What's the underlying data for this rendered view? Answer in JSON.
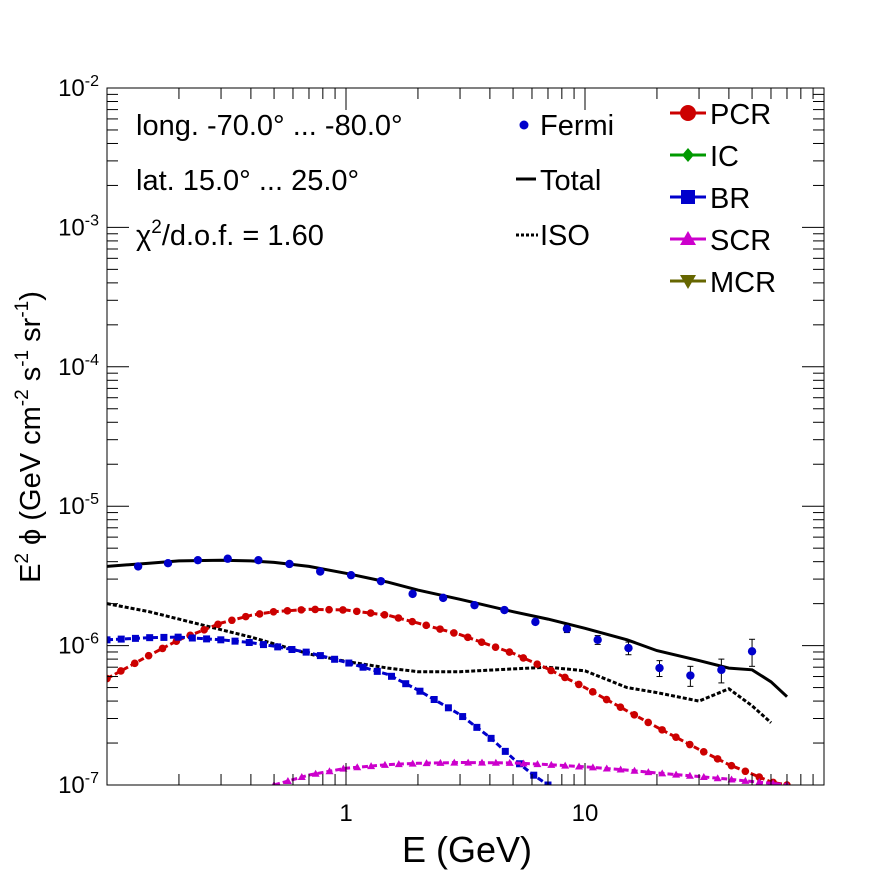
{
  "chart_data": {
    "type": "line",
    "title": "",
    "xlabel": "E (GeV)",
    "ylabel": {
      "prefix": "E",
      "prefix_sup": "2",
      "symbol": "ϕ (GeV cm",
      "sup1": "-2",
      "mid1": " s",
      "sup2": "-1",
      "mid2": " sr",
      "sup3": "-1",
      "suffix": ")"
    },
    "x_scale": "log",
    "y_scale": "log",
    "xlim": [
      0.1,
      100
    ],
    "ylim": [
      1e-07,
      0.01
    ],
    "x_tick_labels": [
      {
        "value": 1,
        "label": "1"
      },
      {
        "value": 10,
        "label": "10"
      }
    ],
    "y_tick_labels": [
      {
        "value": 1e-07,
        "base": "10",
        "exp": "-7"
      },
      {
        "value": 1e-06,
        "base": "10",
        "exp": "-6"
      },
      {
        "value": 1e-05,
        "base": "10",
        "exp": "-5"
      },
      {
        "value": 0.0001,
        "base": "10",
        "exp": "-4"
      },
      {
        "value": 0.001,
        "base": "10",
        "exp": "-3"
      },
      {
        "value": 0.01,
        "base": "10",
        "exp": "-2"
      }
    ],
    "annotations": {
      "region_longitude": "long. -70.0° ... -80.0°",
      "region_latitude": "lat. 15.0° ... 25.0°",
      "chi2": {
        "symbol": "χ",
        "sup": "2",
        "text": "/d.o.f. = 1.60"
      }
    },
    "legend_left": [
      {
        "label": "Fermi",
        "style": "dot"
      },
      {
        "label": "Total",
        "style": "solid"
      },
      {
        "label": "ISO",
        "style": "dotted"
      }
    ],
    "legend_right": [
      {
        "label": "PCR",
        "color": "#cc0000",
        "marker": "circle"
      },
      {
        "label": "IC",
        "color": "#009900",
        "marker": "diamond"
      },
      {
        "label": "BR",
        "color": "#0000cc",
        "marker": "square"
      },
      {
        "label": "SCR",
        "color": "#cc00cc",
        "marker": "triangle-up"
      },
      {
        "label": "MCR",
        "color": "#666600",
        "marker": "triangle-down"
      }
    ],
    "fermi": {
      "name": "Fermi",
      "color": "#0000cc",
      "points": [
        {
          "x": 0.135,
          "y": 3.7e-06,
          "err": 0
        },
        {
          "x": 0.18,
          "y": 3.9e-06,
          "err": 0
        },
        {
          "x": 0.24,
          "y": 4.1e-06,
          "err": 0
        },
        {
          "x": 0.32,
          "y": 4.2e-06,
          "err": 0
        },
        {
          "x": 0.43,
          "y": 4.1e-06,
          "err": 0
        },
        {
          "x": 0.58,
          "y": 3.85e-06,
          "err": 0
        },
        {
          "x": 0.78,
          "y": 3.4e-06,
          "err": 0
        },
        {
          "x": 1.05,
          "y": 3.2e-06,
          "err": 0
        },
        {
          "x": 1.4,
          "y": 2.9e-06,
          "err": 0
        },
        {
          "x": 1.9,
          "y": 2.35e-06,
          "err": 0
        },
        {
          "x": 2.55,
          "y": 2.2e-06,
          "err": 0
        },
        {
          "x": 3.45,
          "y": 1.95e-06,
          "err": 0
        },
        {
          "x": 4.6,
          "y": 1.8e-06,
          "err": 0
        },
        {
          "x": 6.2,
          "y": 1.48e-06,
          "err": 0
        },
        {
          "x": 8.4,
          "y": 1.32e-06,
          "err": 8e-08
        },
        {
          "x": 11.3,
          "y": 1.1e-06,
          "err": 8e-08
        },
        {
          "x": 15.2,
          "y": 9.6e-07,
          "err": 1e-07
        },
        {
          "x": 20.5,
          "y": 6.9e-07,
          "err": 9e-08
        },
        {
          "x": 27.6,
          "y": 6.1e-07,
          "err": 1e-07
        },
        {
          "x": 37.2,
          "y": 6.7e-07,
          "err": 1.3e-07
        },
        {
          "x": 50.0,
          "y": 9.1e-07,
          "err": 2e-07
        }
      ]
    },
    "series": [
      {
        "name": "Total",
        "color": "#000000",
        "style": "solid",
        "marker": "none",
        "x": [
          0.1,
          0.15,
          0.2,
          0.3,
          0.4,
          0.5,
          0.7,
          1.0,
          1.5,
          2.0,
          3.0,
          5.0,
          7.0,
          10.0,
          15.0,
          20.0,
          30.0,
          40.0,
          50.0,
          60.0,
          70.0
        ],
        "y": [
          3.7e-06,
          3.9e-06,
          4.05e-06,
          4.1e-06,
          4.05e-06,
          3.95e-06,
          3.7e-06,
          3.3e-06,
          2.85e-06,
          2.5e-06,
          2.15e-06,
          1.75e-06,
          1.55e-06,
          1.33e-06,
          1.1e-06,
          9.2e-07,
          7.8e-07,
          6.9e-07,
          6.7e-07,
          5.5e-07,
          4.3e-07
        ]
      },
      {
        "name": "ISO",
        "color": "#000000",
        "style": "dotted",
        "marker": "none",
        "x": [
          0.1,
          0.15,
          0.2,
          0.3,
          0.4,
          0.5,
          0.7,
          1.0,
          1.5,
          2.0,
          3.0,
          5.0,
          7.0,
          10.0,
          15.0,
          20.0,
          30.0,
          40.0,
          50.0,
          60.0
        ],
        "y": [
          2e-06,
          1.75e-06,
          1.55e-06,
          1.3e-06,
          1.15e-06,
          1.03e-06,
          8.7e-07,
          7.7e-07,
          6.9e-07,
          6.5e-07,
          6.5e-07,
          6.8e-07,
          7e-07,
          6.6e-07,
          5e-07,
          4.6e-07,
          4e-07,
          4.9e-07,
          3.7e-07,
          2.8e-07
        ]
      },
      {
        "name": "PCR",
        "color": "#cc0000",
        "style": "dashed",
        "marker": "circle",
        "x": [
          0.1,
          0.15,
          0.2,
          0.3,
          0.4,
          0.5,
          0.7,
          1.0,
          1.5,
          2.0,
          3.0,
          5.0,
          7.0,
          10.0,
          15.0,
          20.0,
          30.0,
          40.0,
          50.0,
          60.0,
          70.0
        ],
        "y": [
          5.8e-07,
          8.5e-07,
          1.1e-06,
          1.45e-06,
          1.65e-06,
          1.75e-06,
          1.82e-06,
          1.8e-06,
          1.65e-06,
          1.45e-06,
          1.2e-06,
          8.8e-07,
          6.8e-07,
          5e-07,
          3.4e-07,
          2.6e-07,
          1.8e-07,
          1.4e-07,
          1.2e-07,
          1.05e-07,
          1e-07
        ]
      },
      {
        "name": "BR",
        "color": "#0000cc",
        "style": "dashed",
        "marker": "square",
        "x": [
          0.1,
          0.15,
          0.2,
          0.3,
          0.4,
          0.5,
          0.7,
          1.0,
          1.5,
          2.0,
          3.0,
          4.0,
          5.0,
          6.0,
          7.0
        ],
        "y": [
          1.1e-06,
          1.14e-06,
          1.15e-06,
          1.1e-06,
          1.05e-06,
          9.9e-07,
          8.9e-07,
          7.6e-07,
          6.2e-07,
          4.8e-07,
          3.2e-07,
          2.2e-07,
          1.55e-07,
          1.2e-07,
          1e-07
        ]
      },
      {
        "name": "SCR",
        "color": "#cc00cc",
        "style": "dashed",
        "marker": "triangle-up",
        "x": [
          0.5,
          0.7,
          1.0,
          1.5,
          2.0,
          3.0,
          5.0,
          7.0,
          10.0,
          15.0,
          20.0,
          30.0,
          40.0,
          50.0,
          60.0,
          70.0
        ],
        "y": [
          1e-07,
          1.18e-07,
          1.32e-07,
          1.4e-07,
          1.43e-07,
          1.45e-07,
          1.44e-07,
          1.4e-07,
          1.35e-07,
          1.28e-07,
          1.22e-07,
          1.15e-07,
          1.1e-07,
          1.06e-07,
          1.03e-07,
          1e-07
        ]
      }
    ]
  }
}
